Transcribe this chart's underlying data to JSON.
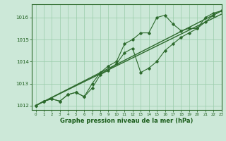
{
  "x": [
    0,
    1,
    2,
    3,
    4,
    5,
    6,
    7,
    8,
    9,
    10,
    11,
    12,
    13,
    14,
    15,
    16,
    17,
    18,
    19,
    20,
    21,
    22,
    23
  ],
  "line1": [
    1012.0,
    1012.2,
    1012.3,
    1012.2,
    1012.5,
    1012.6,
    1012.4,
    1013.0,
    1013.5,
    1013.8,
    1014.0,
    1014.8,
    1015.0,
    1015.3,
    1015.3,
    1016.0,
    1016.1,
    1015.7,
    1015.4,
    1015.5,
    1015.5,
    1016.0,
    1016.2,
    1016.3
  ],
  "line2": [
    1012.0,
    1012.2,
    1012.3,
    1012.2,
    1012.5,
    1012.6,
    1012.4,
    1012.8,
    1013.4,
    1013.6,
    1013.9,
    1014.4,
    1014.6,
    1013.5,
    1013.7,
    1014.0,
    1014.5,
    1014.8,
    1015.1,
    1015.3,
    1015.5,
    1015.8,
    1016.1,
    1016.3
  ],
  "trend1": [
    1012.0,
    1016.15
  ],
  "trend2": [
    1012.0,
    1016.3
  ],
  "trend_x": [
    0,
    23
  ],
  "ylim": [
    1011.8,
    1016.6
  ],
  "xlim": [
    -0.5,
    23
  ],
  "yticks": [
    1012,
    1013,
    1014,
    1015,
    1016
  ],
  "xticks": [
    0,
    1,
    2,
    3,
    4,
    5,
    6,
    7,
    8,
    9,
    10,
    11,
    12,
    13,
    14,
    15,
    16,
    17,
    18,
    19,
    20,
    21,
    22,
    23
  ],
  "line_color": "#2d6a2d",
  "bg_color": "#cce8d8",
  "grid_color": "#99ccaa",
  "xlabel": "Graphe pression niveau de la mer (hPa)",
  "xlabel_color": "#1a5c1a",
  "tick_color": "#1a5c1a",
  "marker": "D",
  "marker_size": 1.8,
  "line_width": 0.8
}
